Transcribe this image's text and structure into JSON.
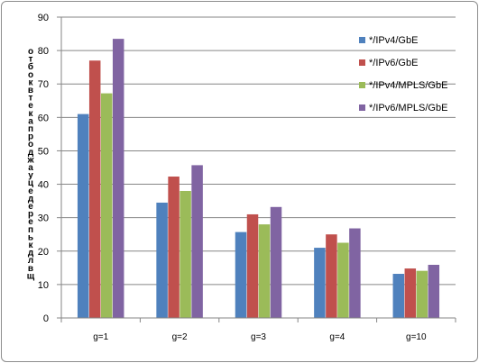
{
  "chart_data": {
    "type": "bar",
    "title": "",
    "xlabel": "",
    "ylabel": "о т б о к в т е к а п р о д ж а у ц е д е р е п ь к д л в щ",
    "ylim": [
      0,
      90
    ],
    "yticks": [
      0,
      10,
      20,
      30,
      40,
      50,
      60,
      70,
      80,
      90
    ],
    "grid": "horizontal",
    "legend_position": "right",
    "categories": [
      "g=1",
      "g=2",
      "g=3",
      "g=4",
      "g=10"
    ],
    "series": [
      {
        "name": "*/IPv4/GbE",
        "color": "#4f81bd",
        "values": [
          61,
          34.5,
          25.7,
          21,
          13.2
        ]
      },
      {
        "name": "*/IPv6/GbE",
        "color": "#c0504d",
        "values": [
          77,
          42.3,
          31,
          25,
          14.8
        ]
      },
      {
        "name": "*/IPv4/MPLS/GbE",
        "color": "#9bbb59",
        "values": [
          67.2,
          38,
          28,
          22.5,
          14.1
        ]
      },
      {
        "name": "*/IPv6/MPLS/GbE",
        "color": "#8064a2",
        "values": [
          83.5,
          45.7,
          33.2,
          26.8,
          15.9
        ]
      }
    ]
  }
}
